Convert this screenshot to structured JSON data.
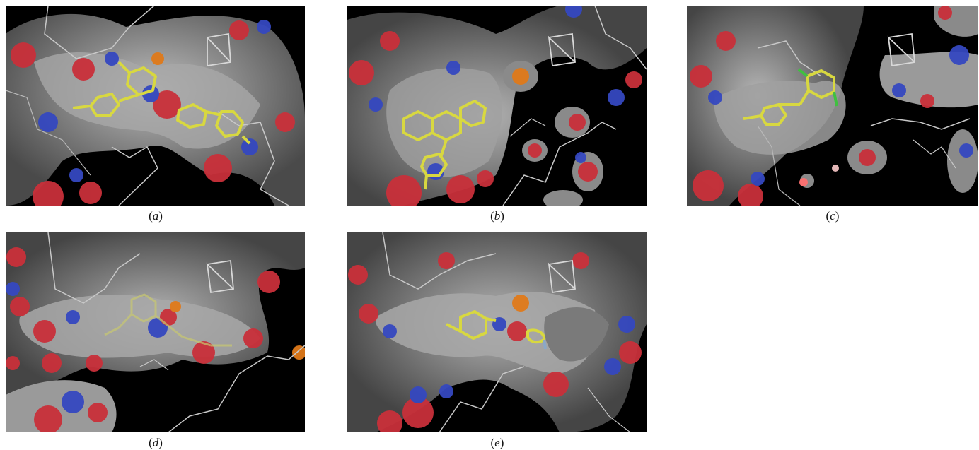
{
  "figure": {
    "panels": [
      {
        "id": "a",
        "caption": "a"
      },
      {
        "id": "b",
        "caption": "b"
      },
      {
        "id": "c",
        "caption": "c"
      },
      {
        "id": "d",
        "caption": "d"
      },
      {
        "id": "e",
        "caption": "e"
      }
    ],
    "colors": {
      "background": "#000000",
      "surface_grey": "#8a8a8a",
      "oxygen_red": "#d0303a",
      "nitrogen_blue": "#3548c0",
      "ligand_yellow": "#d8d840",
      "backbone_trace": "#c8c8c8",
      "sulfur_orange": "#e07a1a",
      "halogen_green": "#40c040"
    }
  }
}
